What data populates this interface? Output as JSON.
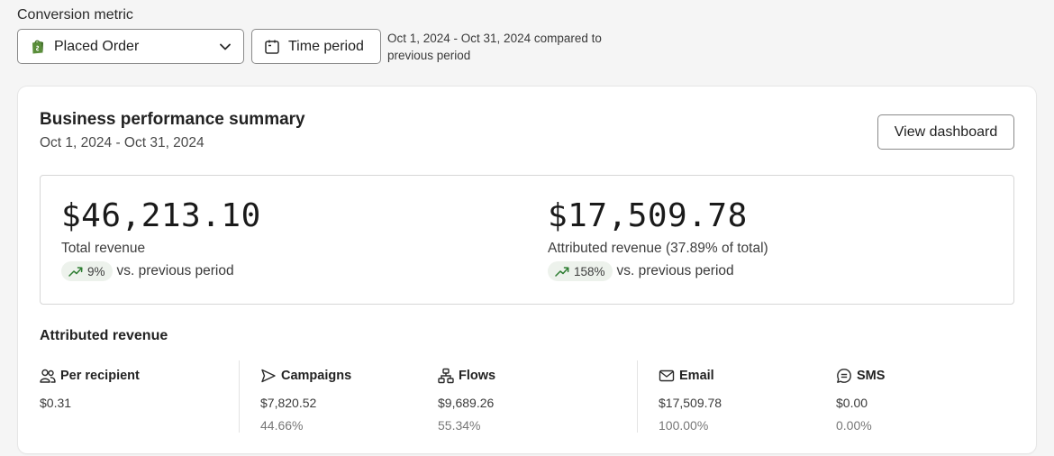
{
  "conversion": {
    "label": "Conversion metric",
    "selected": "Placed Order",
    "time_button": "Time period",
    "range_note": "Oct 1, 2024 - Oct 31, 2024 compared to previous period"
  },
  "summary": {
    "title": "Business performance summary",
    "date_range": "Oct 1, 2024 - Oct 31, 2024",
    "view_button": "View dashboard",
    "total": {
      "value": "$46,213.10",
      "label": "Total revenue",
      "change": "9%",
      "vs": "vs. previous period"
    },
    "attributed": {
      "value": "$17,509.78",
      "label": "Attributed revenue (37.89% of total)",
      "change": "158%",
      "vs": "vs. previous period"
    }
  },
  "attributed_revenue": {
    "title": "Attributed revenue",
    "per_recipient": {
      "label": "Per recipient",
      "value": "$0.31"
    },
    "campaigns": {
      "label": "Campaigns",
      "value": "$7,820.52",
      "share": "44.66%"
    },
    "flows": {
      "label": "Flows",
      "value": "$9,689.26",
      "share": "55.34%"
    },
    "email": {
      "label": "Email",
      "value": "$17,509.78",
      "share": "100.00%"
    },
    "sms": {
      "label": "SMS",
      "value": "$0.00",
      "share": "0.00%"
    }
  },
  "colors": {
    "trend_up": "#2e7d32",
    "pill_bg": "#edf2ec",
    "shopify_green": "#5a8e3a"
  }
}
